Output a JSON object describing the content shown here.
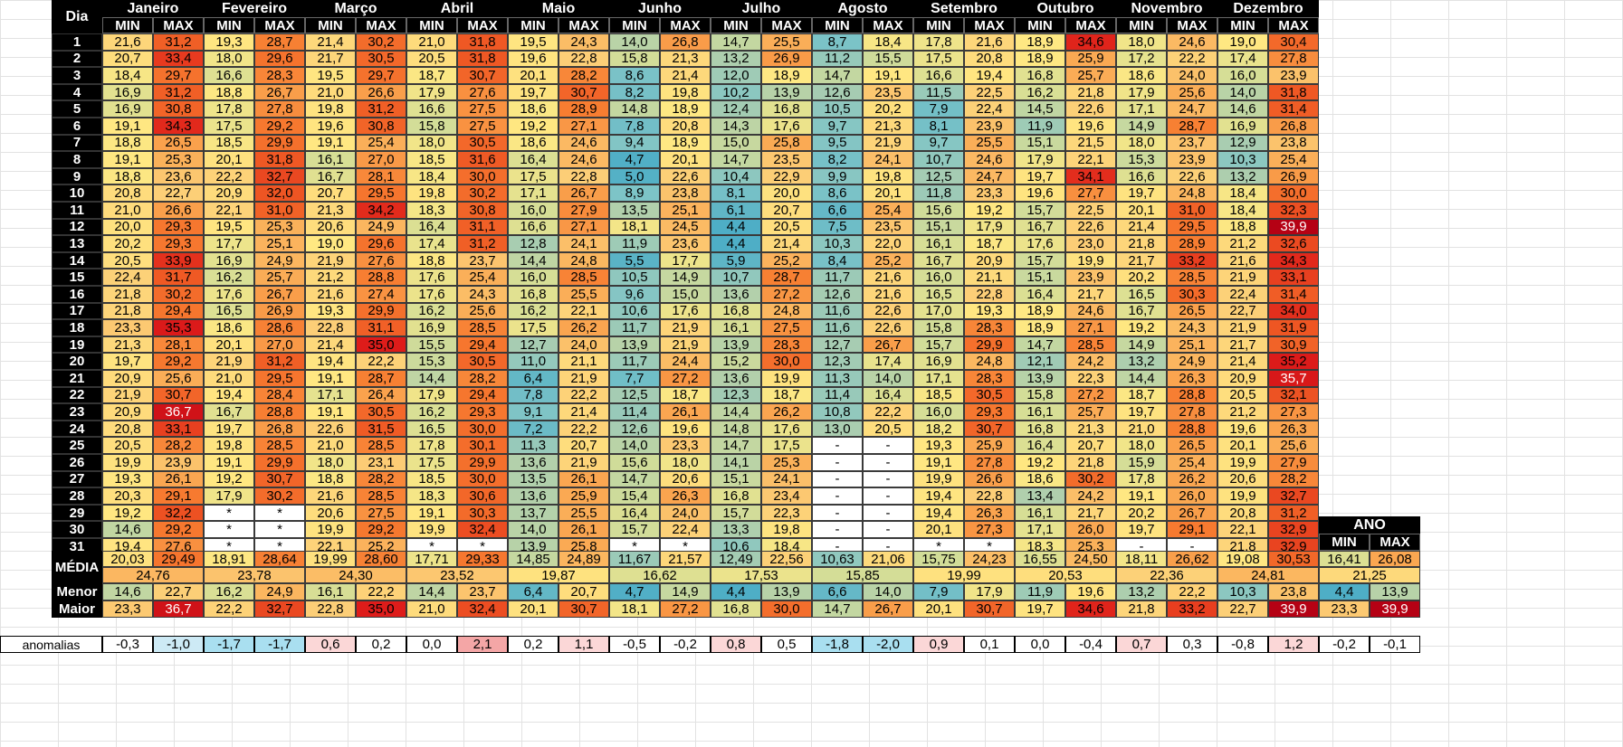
{
  "headers": {
    "dia": "Dia",
    "min": "MIN",
    "max": "MAX",
    "media": "MÉDIA",
    "menor": "Menor",
    "maior": "Maior",
    "ano": "ANO",
    "anomalias": "anomalias"
  },
  "months": [
    "Janeiro",
    "Fevereiro",
    "Março",
    "Abril",
    "Maio",
    "Junho",
    "Julho",
    "Agosto",
    "Setembro",
    "Outubro",
    "Novembro",
    "Dezembro"
  ],
  "days": [
    "1",
    "2",
    "3",
    "4",
    "5",
    "6",
    "7",
    "8",
    "9",
    "10",
    "11",
    "12",
    "13",
    "14",
    "15",
    "16",
    "17",
    "18",
    "19",
    "20",
    "21",
    "22",
    "23",
    "24",
    "25",
    "26",
    "27",
    "28",
    "29",
    "30",
    "31"
  ],
  "data": [
    [
      "21,6",
      "31,2",
      "19,3",
      "28,7",
      "21,4",
      "30,2",
      "21,0",
      "31,8",
      "19,5",
      "24,3",
      "14,0",
      "26,8",
      "14,7",
      "25,5",
      "8,7",
      "18,4",
      "17,8",
      "21,6",
      "18,9",
      "34,6",
      "18,0",
      "24,6",
      "19,0",
      "30,4"
    ],
    [
      "20,7",
      "33,4",
      "18,0",
      "29,6",
      "21,7",
      "30,5",
      "20,5",
      "31,8",
      "19,6",
      "22,8",
      "15,8",
      "21,3",
      "13,2",
      "26,9",
      "11,2",
      "15,5",
      "17,5",
      "20,8",
      "18,9",
      "25,9",
      "17,2",
      "22,2",
      "17,4",
      "27,8"
    ],
    [
      "18,4",
      "29,7",
      "16,6",
      "28,3",
      "19,5",
      "29,7",
      "18,7",
      "30,7",
      "20,1",
      "28,2",
      "8,6",
      "21,4",
      "12,0",
      "18,9",
      "14,7",
      "19,1",
      "16,6",
      "19,4",
      "16,8",
      "25,7",
      "18,6",
      "24,0",
      "16,0",
      "23,9"
    ],
    [
      "16,9",
      "31,2",
      "18,8",
      "26,7",
      "21,0",
      "26,6",
      "17,9",
      "27,6",
      "19,7",
      "30,7",
      "8,2",
      "19,8",
      "10,2",
      "13,9",
      "12,6",
      "23,5",
      "11,5",
      "22,5",
      "16,2",
      "21,8",
      "17,9",
      "25,6",
      "14,0",
      "31,8"
    ],
    [
      "16,9",
      "30,8",
      "17,8",
      "27,8",
      "19,8",
      "31,2",
      "16,6",
      "27,5",
      "18,6",
      "28,9",
      "14,8",
      "18,9",
      "12,4",
      "16,8",
      "10,5",
      "20,2",
      "7,9",
      "22,4",
      "14,5",
      "22,6",
      "17,1",
      "24,7",
      "14,6",
      "31,4"
    ],
    [
      "19,1",
      "34,3",
      "17,5",
      "29,2",
      "19,6",
      "30,8",
      "15,8",
      "27,5",
      "19,2",
      "27,1",
      "7,8",
      "20,8",
      "14,3",
      "17,6",
      "9,7",
      "21,3",
      "8,1",
      "23,9",
      "11,9",
      "19,6",
      "14,9",
      "28,7",
      "16,9",
      "26,8"
    ],
    [
      "18,8",
      "26,5",
      "18,5",
      "29,9",
      "19,1",
      "25,4",
      "18,0",
      "30,5",
      "18,6",
      "24,6",
      "9,4",
      "18,9",
      "15,0",
      "25,8",
      "9,5",
      "21,9",
      "9,7",
      "25,5",
      "15,1",
      "21,5",
      "18,0",
      "23,7",
      "12,9",
      "23,8"
    ],
    [
      "19,1",
      "25,3",
      "20,1",
      "31,8",
      "16,1",
      "27,0",
      "18,5",
      "31,6",
      "16,4",
      "24,6",
      "4,7",
      "20,1",
      "14,7",
      "23,5",
      "8,2",
      "24,1",
      "10,7",
      "24,6",
      "17,9",
      "22,1",
      "15,3",
      "23,9",
      "10,3",
      "25,4"
    ],
    [
      "18,8",
      "23,6",
      "22,2",
      "32,7",
      "16,7",
      "28,1",
      "18,4",
      "30,0",
      "17,5",
      "22,8",
      "5,0",
      "22,6",
      "10,4",
      "22,9",
      "9,9",
      "19,8",
      "12,5",
      "24,7",
      "19,7",
      "34,1",
      "16,6",
      "22,6",
      "13,2",
      "26,9"
    ],
    [
      "20,8",
      "22,7",
      "20,9",
      "32,0",
      "20,7",
      "29,5",
      "19,8",
      "30,2",
      "17,1",
      "26,7",
      "8,9",
      "23,8",
      "8,1",
      "20,0",
      "8,6",
      "20,1",
      "11,8",
      "23,3",
      "19,6",
      "27,7",
      "19,7",
      "24,8",
      "18,4",
      "30,0"
    ],
    [
      "21,0",
      "26,6",
      "22,1",
      "31,0",
      "21,3",
      "34,2",
      "18,3",
      "30,8",
      "16,0",
      "27,9",
      "13,5",
      "25,1",
      "6,1",
      "20,7",
      "6,6",
      "25,4",
      "15,6",
      "19,2",
      "15,7",
      "22,5",
      "20,1",
      "31,0",
      "18,4",
      "32,3"
    ],
    [
      "20,0",
      "29,3",
      "19,5",
      "25,3",
      "20,6",
      "24,9",
      "16,4",
      "31,1",
      "16,6",
      "27,1",
      "18,1",
      "24,5",
      "4,4",
      "20,5",
      "7,5",
      "23,5",
      "15,1",
      "17,9",
      "16,7",
      "22,6",
      "21,4",
      "29,5",
      "18,8",
      "39,9"
    ],
    [
      "20,2",
      "29,3",
      "17,7",
      "25,1",
      "19,0",
      "29,6",
      "17,4",
      "31,2",
      "12,8",
      "24,1",
      "11,9",
      "23,6",
      "4,4",
      "21,4",
      "10,3",
      "22,0",
      "16,1",
      "18,7",
      "17,6",
      "23,0",
      "21,8",
      "28,9",
      "21,2",
      "32,6"
    ],
    [
      "20,5",
      "33,9",
      "16,9",
      "24,9",
      "21,9",
      "27,6",
      "18,8",
      "23,7",
      "14,4",
      "24,8",
      "5,5",
      "17,7",
      "5,9",
      "25,2",
      "8,4",
      "25,2",
      "16,7",
      "20,9",
      "15,7",
      "19,9",
      "21,7",
      "33,2",
      "21,6",
      "34,3"
    ],
    [
      "22,4",
      "31,7",
      "16,2",
      "25,7",
      "21,2",
      "28,8",
      "17,6",
      "25,4",
      "16,0",
      "28,5",
      "10,5",
      "14,9",
      "10,7",
      "28,7",
      "11,7",
      "21,6",
      "16,0",
      "21,1",
      "15,1",
      "23,9",
      "20,2",
      "28,5",
      "21,9",
      "33,1"
    ],
    [
      "21,8",
      "30,2",
      "17,6",
      "26,7",
      "21,6",
      "27,4",
      "17,6",
      "24,3",
      "16,8",
      "25,5",
      "9,6",
      "15,0",
      "13,6",
      "27,2",
      "12,6",
      "21,6",
      "16,5",
      "22,8",
      "16,4",
      "21,7",
      "16,5",
      "30,3",
      "22,4",
      "31,4"
    ],
    [
      "21,8",
      "29,4",
      "16,5",
      "26,9",
      "19,3",
      "29,9",
      "16,2",
      "25,6",
      "16,2",
      "22,1",
      "10,6",
      "17,6",
      "16,8",
      "24,8",
      "11,6",
      "22,6",
      "17,0",
      "19,3",
      "18,9",
      "24,6",
      "16,7",
      "26,5",
      "22,7",
      "34,0"
    ],
    [
      "23,3",
      "35,3",
      "18,6",
      "28,6",
      "22,8",
      "31,1",
      "16,9",
      "28,5",
      "17,5",
      "26,2",
      "11,7",
      "21,9",
      "16,1",
      "27,5",
      "11,6",
      "22,6",
      "15,8",
      "28,3",
      "18,9",
      "27,1",
      "19,2",
      "24,3",
      "21,9",
      "31,9"
    ],
    [
      "21,3",
      "28,1",
      "20,1",
      "27,0",
      "21,4",
      "35,0",
      "15,5",
      "29,4",
      "12,7",
      "24,0",
      "13,9",
      "21,9",
      "13,9",
      "28,3",
      "12,7",
      "26,7",
      "15,7",
      "29,9",
      "14,7",
      "28,5",
      "14,9",
      "25,1",
      "21,7",
      "30,9"
    ],
    [
      "19,7",
      "29,2",
      "21,9",
      "31,2",
      "19,4",
      "22,2",
      "15,3",
      "30,5",
      "11,0",
      "21,1",
      "11,7",
      "24,4",
      "15,2",
      "30,0",
      "12,3",
      "17,4",
      "16,9",
      "24,8",
      "12,1",
      "24,2",
      "13,2",
      "24,9",
      "21,4",
      "35,2"
    ],
    [
      "20,9",
      "25,6",
      "21,0",
      "29,5",
      "19,1",
      "28,7",
      "14,4",
      "28,2",
      "6,4",
      "21,9",
      "7,7",
      "27,2",
      "13,6",
      "19,9",
      "11,3",
      "14,0",
      "17,1",
      "28,3",
      "13,9",
      "22,3",
      "14,4",
      "26,3",
      "20,9",
      "35,7"
    ],
    [
      "21,9",
      "30,7",
      "19,4",
      "28,4",
      "17,1",
      "26,4",
      "17,9",
      "29,4",
      "7,8",
      "22,2",
      "12,5",
      "18,7",
      "12,3",
      "18,7",
      "11,4",
      "16,4",
      "18,5",
      "30,5",
      "15,8",
      "27,2",
      "18,7",
      "28,8",
      "20,5",
      "32,1"
    ],
    [
      "20,9",
      "36,7",
      "16,7",
      "28,8",
      "19,1",
      "30,5",
      "16,2",
      "29,3",
      "9,1",
      "21,4",
      "11,4",
      "26,1",
      "14,4",
      "26,2",
      "10,8",
      "22,2",
      "16,0",
      "29,3",
      "16,1",
      "25,7",
      "19,7",
      "27,8",
      "21,2",
      "27,3"
    ],
    [
      "20,8",
      "33,1",
      "19,7",
      "26,8",
      "22,6",
      "31,5",
      "16,5",
      "30,0",
      "7,2",
      "22,2",
      "12,6",
      "19,6",
      "14,8",
      "17,6",
      "13,0",
      "20,5",
      "18,2",
      "30,7",
      "16,8",
      "21,3",
      "21,0",
      "28,8",
      "19,6",
      "26,3"
    ],
    [
      "20,5",
      "28,2",
      "19,8",
      "28,5",
      "21,0",
      "28,5",
      "17,8",
      "30,1",
      "11,3",
      "20,7",
      "14,0",
      "23,3",
      "14,7",
      "17,5",
      "-",
      "-",
      "19,3",
      "25,9",
      "16,4",
      "20,7",
      "18,0",
      "26,5",
      "20,1",
      "25,6"
    ],
    [
      "19,9",
      "23,9",
      "19,1",
      "29,9",
      "18,0",
      "23,1",
      "17,5",
      "29,9",
      "13,6",
      "21,9",
      "15,6",
      "18,0",
      "14,1",
      "25,3",
      "-",
      "-",
      "19,1",
      "27,8",
      "19,2",
      "21,8",
      "15,9",
      "25,4",
      "19,9",
      "27,9"
    ],
    [
      "19,3",
      "26,1",
      "19,2",
      "30,7",
      "18,8",
      "28,2",
      "18,5",
      "30,0",
      "13,5",
      "26,1",
      "14,7",
      "20,6",
      "15,1",
      "24,1",
      "-",
      "-",
      "19,9",
      "26,6",
      "18,6",
      "30,2",
      "17,8",
      "26,2",
      "20,6",
      "28,2"
    ],
    [
      "20,3",
      "29,1",
      "17,9",
      "30,2",
      "21,6",
      "28,5",
      "18,3",
      "30,6",
      "13,6",
      "25,9",
      "15,4",
      "26,3",
      "16,8",
      "23,4",
      "-",
      "-",
      "19,4",
      "22,8",
      "13,4",
      "24,2",
      "19,1",
      "26,0",
      "19,9",
      "32,7"
    ],
    [
      "19,2",
      "32,2",
      "*",
      "*",
      "20,6",
      "27,5",
      "19,1",
      "30,3",
      "13,7",
      "25,5",
      "16,4",
      "24,0",
      "15,7",
      "22,3",
      "-",
      "-",
      "19,4",
      "26,3",
      "16,1",
      "21,7",
      "20,2",
      "26,7",
      "20,8",
      "31,2"
    ],
    [
      "14,6",
      "29,2",
      "*",
      "*",
      "19,9",
      "29,2",
      "19,9",
      "32,4",
      "14,0",
      "26,1",
      "15,7",
      "22,4",
      "13,3",
      "19,8",
      "-",
      "-",
      "20,1",
      "27,3",
      "17,1",
      "26,0",
      "19,7",
      "29,1",
      "22,1",
      "32,9"
    ],
    [
      "19,4",
      "27,6",
      "*",
      "*",
      "22,1",
      "25,2",
      "*",
      "*",
      "13,9",
      "25,8",
      "*",
      "*",
      "10,6",
      "18,4",
      "-",
      "-",
      "*",
      "*",
      "18,3",
      "25,3",
      "-",
      "-",
      "21,8",
      "32,9"
    ]
  ],
  "media_pair": [
    "20,03",
    "29,49",
    "18,91",
    "28,64",
    "19,99",
    "28,60",
    "17,71",
    "29,33",
    "14,85",
    "24,89",
    "11,67",
    "21,57",
    "12,49",
    "22,56",
    "10,63",
    "21,06",
    "15,75",
    "24,23",
    "16,55",
    "24,50",
    "18,11",
    "26,62",
    "19,08",
    "30,53"
  ],
  "media_month": [
    "24,76",
    "23,78",
    "24,30",
    "23,52",
    "19,87",
    "16,62",
    "17,53",
    "15,85",
    "19,99",
    "20,53",
    "22,36",
    "24,81"
  ],
  "menor": [
    "14,6",
    "22,7",
    "16,2",
    "24,9",
    "16,1",
    "22,2",
    "14,4",
    "23,7",
    "6,4",
    "20,7",
    "4,7",
    "14,9",
    "4,4",
    "13,9",
    "6,6",
    "14,0",
    "7,9",
    "17,9",
    "11,9",
    "19,6",
    "13,2",
    "22,2",
    "10,3",
    "23,8"
  ],
  "maior": [
    "23,3",
    "36,7",
    "22,2",
    "32,7",
    "22,8",
    "35,0",
    "21,0",
    "32,4",
    "20,1",
    "30,7",
    "18,1",
    "27,2",
    "16,8",
    "30,0",
    "14,7",
    "26,7",
    "20,1",
    "30,7",
    "19,7",
    "34,6",
    "21,8",
    "33,2",
    "22,7",
    "39,9"
  ],
  "ano": {
    "media_min": "16,41",
    "media_max": "26,08",
    "media": "21,25",
    "menor_min": "4,4",
    "menor_max": "13,9",
    "maior_min": "23,3",
    "maior_max": "39,9"
  },
  "anomalias": [
    "-0,3",
    "-1,0",
    "-1,7",
    "-1,7",
    "0,6",
    "0,2",
    "0,0",
    "2,1",
    "0,2",
    "1,1",
    "-0,5",
    "-0,2",
    "0,8",
    "0,5",
    "-1,8",
    "-2,0",
    "0,9",
    "0,1",
    "0,0",
    "-0,4",
    "0,7",
    "0,3",
    "-0,8",
    "1,2",
    "-0,2",
    "-0,1"
  ]
}
